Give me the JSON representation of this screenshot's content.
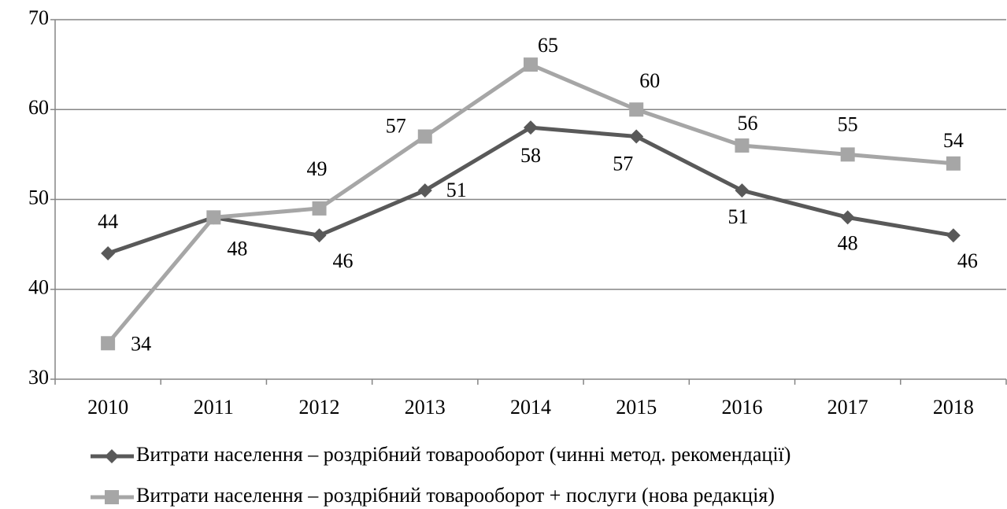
{
  "chart_data": {
    "type": "line",
    "categories": [
      "2010",
      "2011",
      "2012",
      "2013",
      "2014",
      "2015",
      "2016",
      "2017",
      "2018"
    ],
    "series": [
      {
        "name": "Витрати населення – роздрібний товарооборот (чинні метод. рекомендації)",
        "color": "#595959",
        "marker": "diamond",
        "values": [
          44,
          48,
          46,
          51,
          58,
          57,
          51,
          48,
          46
        ]
      },
      {
        "name": "Витрати населення – роздрібний товарооборот + послуги (нова редакція)",
        "color": "#a6a6a6",
        "marker": "square",
        "values": [
          34,
          48,
          49,
          57,
          65,
          60,
          56,
          55,
          54
        ]
      }
    ],
    "ylim": [
      30,
      70
    ],
    "yticks": [
      30,
      40,
      50,
      60,
      70
    ],
    "grid": true,
    "legend": "bottom"
  }
}
